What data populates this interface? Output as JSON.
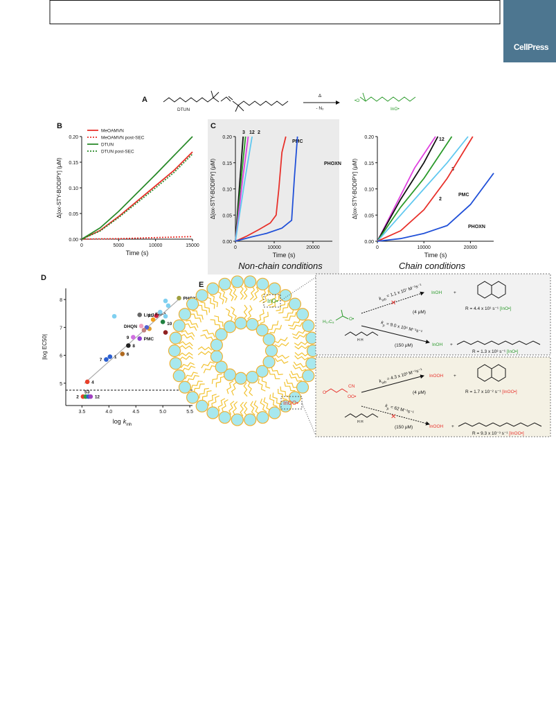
{
  "header": {
    "logo": "CellPress"
  },
  "panel_a": {
    "label": "A",
    "reactant": "DTUN",
    "condition_top": "Δ",
    "condition_bottom": "- N₂",
    "product": "InO•"
  },
  "chart_data": [
    {
      "type": "line",
      "panel_label": "B",
      "xlabel": "Time (s)",
      "ylabel": "Δ[ox-STY-BODIPY] (μM)",
      "x": [
        0,
        2500,
        5000,
        7500,
        10000,
        12500,
        15000
      ],
      "xlim": [
        0,
        15000
      ],
      "xticks": [
        0,
        5000,
        10000,
        15000
      ],
      "ylim": [
        0,
        0.2
      ],
      "yticks": [
        {
          "value": 0,
          "label": "0.00"
        },
        0.05,
        {
          "value": 0.1,
          "label": "0.10"
        },
        0.15,
        {
          "value": 0.2,
          "label": "0.20"
        }
      ],
      "legend": "upper left",
      "series": [
        {
          "name": "MeOAMVN",
          "color": "#e8302a",
          "style": "solid",
          "values": [
            0,
            0.017,
            0.044,
            0.074,
            0.104,
            0.134,
            0.17
          ]
        },
        {
          "name": "MeOAMVN post-SEC",
          "color": "#e8302a",
          "style": "dotted",
          "values": [
            0,
            0.0005,
            0.001,
            0.002,
            0.003,
            0.004,
            0.005
          ]
        },
        {
          "name": "DTUN",
          "color": "#2a8a2a",
          "style": "solid",
          "values": [
            0,
            0.022,
            0.054,
            0.09,
            0.126,
            0.163,
            0.2
          ]
        },
        {
          "name": "DTUN post-SEC",
          "color": "#2a8a2a",
          "style": "dotted",
          "values": [
            0,
            0.016,
            0.042,
            0.071,
            0.1,
            0.13,
            0.166
          ]
        }
      ]
    },
    {
      "type": "line",
      "panel_label": "C",
      "caption": "Non-chain conditions",
      "background": "#ebebeb",
      "xlabel": "Time (s)",
      "ylabel": "Δ[ox-STY-BODIPY] (μM)",
      "xlim": [
        0,
        25000
      ],
      "xticks": [
        0,
        10000,
        20000
      ],
      "ylim": [
        0,
        0.2
      ],
      "yticks": [
        {
          "value": 0,
          "label": "0.00"
        },
        0.05,
        {
          "value": 0.1,
          "label": "0.10"
        },
        0.15,
        {
          "value": 0.2,
          "label": "0.20"
        }
      ],
      "series": [
        {
          "color": "#111111",
          "style": "solid",
          "x": [
            0,
            1200,
            2000
          ],
          "values": [
            0,
            0.12,
            0.2
          ]
        },
        {
          "name": "3",
          "color": "#2a9a2a",
          "style": "solid",
          "x": [
            0,
            1500,
            2600
          ],
          "values": [
            0,
            0.12,
            0.2
          ]
        },
        {
          "name": "12",
          "color": "#e040e0",
          "style": "solid",
          "x": [
            0,
            1900,
            3300
          ],
          "values": [
            0,
            0.12,
            0.2
          ]
        },
        {
          "name": "2",
          "color": "#60c8f0",
          "style": "solid",
          "x": [
            0,
            2500,
            4300
          ],
          "values": [
            0,
            0.12,
            0.2
          ]
        },
        {
          "name": "PMC",
          "color": "#e8302a",
          "style": "solid",
          "x": [
            0,
            3000,
            6000,
            9000,
            10500,
            11200,
            12000,
            13000
          ],
          "values": [
            0,
            0.01,
            0.022,
            0.035,
            0.05,
            0.1,
            0.17,
            0.2
          ]
        },
        {
          "name": "PHOXN",
          "color": "#2050d8",
          "style": "solid",
          "x": [
            0,
            4000,
            8000,
            12000,
            14500,
            15200,
            16000
          ],
          "values": [
            0,
            0.008,
            0.015,
            0.025,
            0.04,
            0.12,
            0.2
          ]
        }
      ]
    },
    {
      "type": "line",
      "caption": "Chain conditions",
      "xlabel": "Time (s)",
      "ylabel": "Δ[ox-STY-BODIPY] (μM)",
      "xlim": [
        0,
        25000
      ],
      "xticks": [
        0,
        10000,
        20000
      ],
      "ylim": [
        0,
        0.2
      ],
      "yticks": [
        {
          "value": 0,
          "label": "0.00"
        },
        0.05,
        {
          "value": 0.1,
          "label": "0.10"
        },
        0.15,
        {
          "value": 0.2,
          "label": "0.20"
        }
      ],
      "series": [
        {
          "name": "12",
          "color": "#e040e0",
          "style": "solid",
          "x": [
            0,
            4000,
            8000,
            12500
          ],
          "values": [
            0,
            0.07,
            0.14,
            0.2
          ]
        },
        {
          "color": "#111111",
          "style": "solid",
          "x": [
            0,
            5000,
            10000,
            13000
          ],
          "values": [
            0,
            0.08,
            0.15,
            0.2
          ]
        },
        {
          "name": "3",
          "color": "#2a9a2a",
          "style": "solid",
          "x": [
            0,
            5000,
            10000,
            16000
          ],
          "values": [
            0,
            0.065,
            0.12,
            0.2
          ]
        },
        {
          "name": "2",
          "color": "#60c8f0",
          "style": "solid",
          "x": [
            0,
            5000,
            10000,
            15000,
            19500
          ],
          "values": [
            0,
            0.05,
            0.1,
            0.15,
            0.2
          ]
        },
        {
          "name": "PMC",
          "color": "#e8302a",
          "style": "solid",
          "x": [
            0,
            5000,
            10000,
            15000,
            20500
          ],
          "values": [
            0,
            0.02,
            0.06,
            0.12,
            0.2
          ]
        },
        {
          "name": "PHOXN",
          "color": "#2050d8",
          "style": "solid",
          "x": [
            0,
            5000,
            10000,
            15000,
            20000,
            25000
          ],
          "values": [
            0,
            0.005,
            0.015,
            0.03,
            0.07,
            0.13
          ]
        }
      ]
    },
    {
      "type": "scatter",
      "panel_label": "D",
      "xlabel": "log",
      "xlabel_var": "k",
      "xlabel_sub": "inh",
      "ylabel": "|log EC50|",
      "xlim": [
        3.2,
        5.55
      ],
      "ylim": [
        4.2,
        8.4
      ],
      "xticks": [
        3.5,
        {
          "value": 4,
          "label": "4.0"
        },
        4.5,
        {
          "value": 5,
          "label": "5.0"
        },
        5.5
      ],
      "yticks": [
        5,
        6,
        7,
        8
      ],
      "threshold": 4.75,
      "x": [
        3.6,
        3.95,
        4.02,
        4.25,
        4.36,
        4.45,
        4.57,
        4.6,
        4.57,
        4.88,
        4.82,
        5.0,
        5.3,
        3.52,
        3.57,
        3.62,
        3.66,
        4.1,
        4.95,
        5.05,
        5.1,
        5.05,
        4.75,
        4.7,
        5.05,
        4.65
      ],
      "values": [
        5.05,
        5.85,
        5.95,
        6.05,
        6.35,
        6.65,
        6.6,
        7.05,
        7.45,
        7.42,
        7.28,
        7.2,
        8.05,
        4.52,
        4.52,
        4.52,
        4.52,
        7.4,
        7.55,
        7.95,
        7.78,
        7.4,
        6.95,
        7.0,
        6.82,
        6.9
      ],
      "colors": [
        "#e8402a",
        "#2b5fd0",
        "#2b5fd0",
        "#b06a20",
        "#222222",
        "#d070e0",
        "#9040d0",
        "#f0a0c0",
        "#666666",
        "#d02040",
        "#f0a020",
        "#208040",
        "#a0a040",
        "#e8402a",
        "#30a040",
        "#3060d0",
        "#a040c0",
        "#80d0f0",
        "#80d0f0",
        "#80d0f0",
        "#80d0f0",
        "#80d0f0",
        "#e0a030",
        "#5060d0",
        "#902020",
        "#c08080"
      ],
      "point_labels": [
        "4",
        "7",
        "1",
        "6",
        "8",
        "9",
        "PMC",
        "DHQN",
        "Lip-1",
        "11",
        "Fer-1",
        "10",
        "PHOXN",
        "2",
        "5",
        "3",
        "12",
        null,
        null,
        null,
        null,
        null,
        null,
        null,
        null,
        null
      ]
    }
  ],
  "panel_e": {
    "label": "E",
    "k": "k",
    "vesicle_top": "InO•",
    "vesicle_bottom": "InOO•",
    "top": {
      "radical_chain": "H₁₇C₈",
      "radical_o": "O•",
      "k_inh_sub": "inh",
      "k_inh": " = 1.1 x 10⁷ M⁻¹s⁻¹",
      "inhibitor_conc": "(4 μM)",
      "product": "InOH",
      "plus": "+",
      "rate_inh": "R = 4.4 x 10¹ s⁻¹ ",
      "species": "[InO•]",
      "k_p_sub": "p",
      "k_p": " = 9.0 x 10⁶ M⁻¹s⁻¹",
      "lipid_h": "H H",
      "lipid_conc": "(150 μM)",
      "rate_p": "R = 1.3 x 10³ s⁻¹ "
    },
    "bottom": {
      "radical_o": "O",
      "radical_cn": "CN",
      "radical_oo": "OO•",
      "k_inh_sub": "inh",
      "k_inh": " = 4.3 x 10³ M⁻¹s⁻¹",
      "inhibitor_conc": "(4 μM)",
      "product": "InOOH",
      "plus": "+",
      "rate_inh": "R = 1.7 x 10⁻² s⁻¹ ",
      "species": "[InOO•]",
      "k_p_sub": "p",
      "k_p": " = 62 M⁻¹s⁻¹",
      "lipid_h": "H H",
      "lipid_conc": "(150 μM)",
      "rate_p": "R = 9.3 x 10⁻³ s⁻¹ "
    }
  }
}
